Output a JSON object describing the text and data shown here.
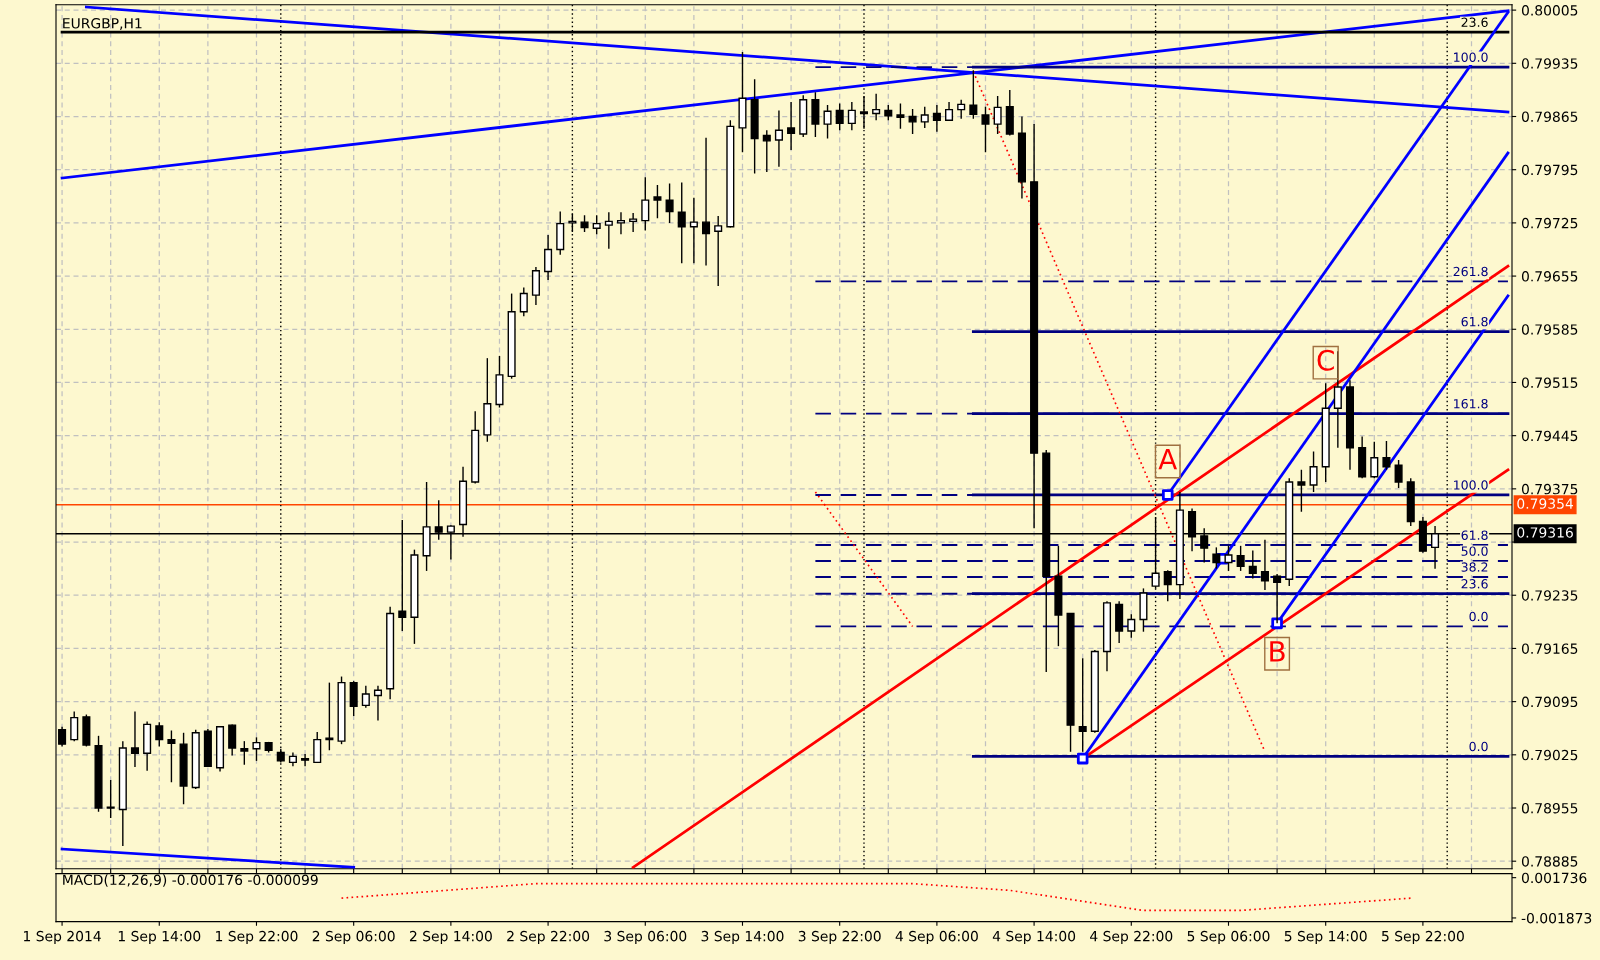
{
  "chart_data": [
    {
      "type": "candlestick",
      "title": "EURGBP,H1",
      "tick_labels": "y",
      "grid": true,
      "x": [
        "2014-09-01T06:00",
        "2014-09-01T07:00",
        "2014-09-01T08:00",
        "2014-09-01T09:00",
        "2014-09-01T10:00",
        "2014-09-01T11:00",
        "2014-09-01T12:00",
        "2014-09-01T13:00",
        "2014-09-01T14:00",
        "2014-09-01T15:00",
        "2014-09-01T16:00",
        "2014-09-01T17:00",
        "2014-09-01T18:00",
        "2014-09-01T19:00",
        "2014-09-01T20:00",
        "2014-09-01T21:00",
        "2014-09-01T22:00",
        "2014-09-01T23:00",
        "2014-09-02T00:00",
        "2014-09-02T01:00",
        "2014-09-02T02:00",
        "2014-09-02T03:00",
        "2014-09-02T04:00",
        "2014-09-02T05:00",
        "2014-09-02T06:00",
        "2014-09-02T07:00",
        "2014-09-02T08:00",
        "2014-09-02T09:00",
        "2014-09-02T10:00",
        "2014-09-02T11:00",
        "2014-09-02T12:00",
        "2014-09-02T13:00",
        "2014-09-02T14:00",
        "2014-09-02T15:00",
        "2014-09-02T16:00",
        "2014-09-02T17:00",
        "2014-09-02T18:00",
        "2014-09-02T19:00",
        "2014-09-02T20:00",
        "2014-09-02T21:00",
        "2014-09-02T22:00",
        "2014-09-02T23:00",
        "2014-09-03T00:00",
        "2014-09-03T01:00",
        "2014-09-03T02:00",
        "2014-09-03T03:00",
        "2014-09-03T04:00",
        "2014-09-03T05:00",
        "2014-09-03T06:00",
        "2014-09-03T07:00",
        "2014-09-03T08:00",
        "2014-09-03T09:00",
        "2014-09-03T10:00",
        "2014-09-03T11:00",
        "2014-09-03T12:00",
        "2014-09-03T13:00",
        "2014-09-03T14:00",
        "2014-09-03T15:00",
        "2014-09-03T16:00",
        "2014-09-03T17:00",
        "2014-09-03T18:00",
        "2014-09-03T19:00",
        "2014-09-03T20:00",
        "2014-09-03T21:00",
        "2014-09-03T22:00",
        "2014-09-03T23:00",
        "2014-09-04T00:00",
        "2014-09-04T01:00",
        "2014-09-04T02:00",
        "2014-09-04T03:00",
        "2014-09-04T04:00",
        "2014-09-04T05:00",
        "2014-09-04T06:00",
        "2014-09-04T07:00",
        "2014-09-04T08:00",
        "2014-09-04T09:00",
        "2014-09-04T10:00",
        "2014-09-04T11:00",
        "2014-09-04T12:00",
        "2014-09-04T13:00",
        "2014-09-04T14:00",
        "2014-09-04T15:00",
        "2014-09-04T16:00",
        "2014-09-04T17:00",
        "2014-09-04T18:00",
        "2014-09-04T19:00",
        "2014-09-04T20:00",
        "2014-09-04T21:00",
        "2014-09-04T22:00",
        "2014-09-04T23:00",
        "2014-09-05T00:00",
        "2014-09-05T01:00",
        "2014-09-05T02:00",
        "2014-09-05T03:00",
        "2014-09-05T04:00",
        "2014-09-05T05:00",
        "2014-09-05T06:00",
        "2014-09-05T07:00",
        "2014-09-05T08:00",
        "2014-09-05T09:00",
        "2014-09-05T10:00",
        "2014-09-05T11:00",
        "2014-09-05T12:00",
        "2014-09-05T13:00",
        "2014-09-05T14:00",
        "2014-09-05T15:00",
        "2014-09-05T16:00",
        "2014-09-05T17:00",
        "2014-09-05T18:00",
        "2014-09-05T19:00",
        "2014-09-05T20:00",
        "2014-09-05T21:00",
        "2014-09-05T22:00",
        "2014-09-05T23:00"
      ],
      "ohlc": [
        [
          0.79058,
          0.79062,
          0.79036,
          0.79039
        ],
        [
          0.79045,
          0.79082,
          0.79043,
          0.79074
        ],
        [
          0.79075,
          0.79078,
          0.79036,
          0.79038
        ],
        [
          0.79037,
          0.7905,
          0.7895,
          0.78955
        ],
        [
          0.78955,
          0.78992,
          0.78942,
          0.78956
        ],
        [
          0.78953,
          0.79043,
          0.78905,
          0.79034
        ],
        [
          0.79034,
          0.79082,
          0.79009,
          0.79027
        ],
        [
          0.79027,
          0.79069,
          0.79004,
          0.79065
        ],
        [
          0.79063,
          0.79068,
          0.79036,
          0.79045
        ],
        [
          0.79045,
          0.79057,
          0.78989,
          0.7904
        ],
        [
          0.79039,
          0.79054,
          0.7896,
          0.78984
        ],
        [
          0.78982,
          0.79058,
          0.7898,
          0.79054
        ],
        [
          0.79056,
          0.79059,
          0.79009,
          0.7901
        ],
        [
          0.79008,
          0.79063,
          0.79003,
          0.79062
        ],
        [
          0.79064,
          0.79065,
          0.79024,
          0.79034
        ],
        [
          0.79033,
          0.79043,
          0.79012,
          0.7903
        ],
        [
          0.79033,
          0.79048,
          0.79017,
          0.79041
        ],
        [
          0.79041,
          0.79042,
          0.79028,
          0.79031
        ],
        [
          0.79028,
          0.79033,
          0.79015,
          0.79017
        ],
        [
          0.79015,
          0.79028,
          0.7901,
          0.79023
        ],
        [
          0.7902,
          0.79026,
          0.7901,
          0.79018
        ],
        [
          0.79015,
          0.79055,
          0.79015,
          0.79045
        ],
        [
          0.79047,
          0.7912,
          0.79031,
          0.79045
        ],
        [
          0.79043,
          0.79128,
          0.79039,
          0.7912
        ],
        [
          0.7912,
          0.79122,
          0.79076,
          0.79089
        ],
        [
          0.7909,
          0.79116,
          0.79087,
          0.79105
        ],
        [
          0.79103,
          0.79116,
          0.7907,
          0.7911
        ],
        [
          0.79112,
          0.7922,
          0.79098,
          0.79211
        ],
        [
          0.79214,
          0.79334,
          0.79188,
          0.79206
        ],
        [
          0.79206,
          0.79295,
          0.79171,
          0.79288
        ],
        [
          0.79287,
          0.79384,
          0.79267,
          0.79325
        ],
        [
          0.79325,
          0.7936,
          0.79308,
          0.79318
        ],
        [
          0.79318,
          0.79327,
          0.79282,
          0.79326
        ],
        [
          0.79328,
          0.79404,
          0.79312,
          0.79385
        ],
        [
          0.79384,
          0.79477,
          0.79382,
          0.79452
        ],
        [
          0.79446,
          0.79547,
          0.79437,
          0.79487
        ],
        [
          0.79486,
          0.7955,
          0.79482,
          0.79525
        ],
        [
          0.79523,
          0.79632,
          0.7952,
          0.79608
        ],
        [
          0.79608,
          0.7964,
          0.79602,
          0.79632
        ],
        [
          0.7963,
          0.79667,
          0.79617,
          0.79662
        ],
        [
          0.79661,
          0.79709,
          0.7965,
          0.7969
        ],
        [
          0.7969,
          0.7974,
          0.79683,
          0.79724
        ],
        [
          0.79725,
          0.79737,
          0.79713,
          0.79727
        ],
        [
          0.79726,
          0.79735,
          0.79713,
          0.79719
        ],
        [
          0.79718,
          0.79735,
          0.7971,
          0.79724
        ],
        [
          0.79722,
          0.79739,
          0.79691,
          0.79727
        ],
        [
          0.79725,
          0.79739,
          0.7971,
          0.79728
        ],
        [
          0.79727,
          0.79738,
          0.79713,
          0.7973
        ],
        [
          0.79728,
          0.79785,
          0.79715,
          0.79755
        ],
        [
          0.79759,
          0.79775,
          0.79731,
          0.79755
        ],
        [
          0.79755,
          0.79777,
          0.79725,
          0.7974
        ],
        [
          0.79739,
          0.79778,
          0.79672,
          0.7972
        ],
        [
          0.7972,
          0.79758,
          0.79672,
          0.79726
        ],
        [
          0.79726,
          0.79837,
          0.79669,
          0.79711
        ],
        [
          0.79714,
          0.79734,
          0.79642,
          0.79721
        ],
        [
          0.7972,
          0.7986,
          0.79719,
          0.79852
        ],
        [
          0.7985,
          0.7995,
          0.79818,
          0.79889
        ],
        [
          0.79887,
          0.79914,
          0.7979,
          0.79836
        ],
        [
          0.7984,
          0.79847,
          0.79792,
          0.79833
        ],
        [
          0.79834,
          0.79873,
          0.79799,
          0.79847
        ],
        [
          0.7985,
          0.79884,
          0.79821,
          0.79843
        ],
        [
          0.79842,
          0.79893,
          0.79838,
          0.79887
        ],
        [
          0.79887,
          0.79897,
          0.79838,
          0.79855
        ],
        [
          0.79855,
          0.7988,
          0.79836,
          0.79872
        ],
        [
          0.79873,
          0.79882,
          0.79847,
          0.79856
        ],
        [
          0.79856,
          0.79884,
          0.79847,
          0.79873
        ],
        [
          0.79871,
          0.79892,
          0.79849,
          0.79869
        ],
        [
          0.79869,
          0.79895,
          0.7986,
          0.79874
        ],
        [
          0.79873,
          0.7988,
          0.7986,
          0.79866
        ],
        [
          0.79867,
          0.79882,
          0.79849,
          0.79864
        ],
        [
          0.79865,
          0.79875,
          0.79842,
          0.79858
        ],
        [
          0.79858,
          0.79878,
          0.7985,
          0.79867
        ],
        [
          0.79869,
          0.7988,
          0.79845,
          0.7986
        ],
        [
          0.7986,
          0.79884,
          0.7986,
          0.79874
        ],
        [
          0.79874,
          0.79887,
          0.79862,
          0.79881
        ],
        [
          0.7988,
          0.79926,
          0.79862,
          0.79868
        ],
        [
          0.79867,
          0.79878,
          0.79818,
          0.79855
        ],
        [
          0.79855,
          0.79892,
          0.79842,
          0.79877
        ],
        [
          0.79878,
          0.799,
          0.7984,
          0.79842
        ],
        [
          0.79843,
          0.79865,
          0.79757,
          0.79779
        ],
        [
          0.79779,
          0.79855,
          0.79323,
          0.79422
        ],
        [
          0.79422,
          0.79426,
          0.79134,
          0.7926
        ],
        [
          0.7926,
          0.793,
          0.79168,
          0.79209
        ],
        [
          0.79211,
          0.79211,
          0.79029,
          0.79064
        ],
        [
          0.79062,
          0.79152,
          0.79029,
          0.79056
        ],
        [
          0.79056,
          0.79163,
          0.79054,
          0.79161
        ],
        [
          0.79161,
          0.79227,
          0.79135,
          0.79225
        ],
        [
          0.79223,
          0.79227,
          0.79172,
          0.79188
        ],
        [
          0.79188,
          0.7921,
          0.79179,
          0.79203
        ],
        [
          0.79203,
          0.79244,
          0.79187,
          0.79238
        ],
        [
          0.79247,
          0.79338,
          0.79244,
          0.79264
        ],
        [
          0.79266,
          0.79268,
          0.79227,
          0.79249
        ],
        [
          0.79249,
          0.79371,
          0.7923,
          0.79347
        ],
        [
          0.79345,
          0.79349,
          0.79293,
          0.79312
        ],
        [
          0.79313,
          0.79323,
          0.79278,
          0.79297
        ],
        [
          0.79289,
          0.79298,
          0.7927,
          0.79278
        ],
        [
          0.79278,
          0.793,
          0.79267,
          0.79288
        ],
        [
          0.79287,
          0.793,
          0.79267,
          0.79273
        ],
        [
          0.79273,
          0.79294,
          0.79257,
          0.79264
        ],
        [
          0.79266,
          0.79308,
          0.79242,
          0.79254
        ],
        [
          0.7926,
          0.79263,
          0.79198,
          0.79252
        ],
        [
          0.79256,
          0.79389,
          0.79247,
          0.79384
        ],
        [
          0.79384,
          0.794,
          0.79345,
          0.7938
        ],
        [
          0.7938,
          0.79424,
          0.79371,
          0.79404
        ],
        [
          0.79404,
          0.79514,
          0.79384,
          0.79481
        ],
        [
          0.79481,
          0.79556,
          0.79429,
          0.79509
        ],
        [
          0.79509,
          0.79518,
          0.794,
          0.79429
        ],
        [
          0.79429,
          0.79444,
          0.79389,
          0.79391
        ],
        [
          0.79391,
          0.79437,
          0.79389,
          0.79416
        ],
        [
          0.79416,
          0.79438,
          0.794,
          0.79404
        ],
        [
          0.79406,
          0.79413,
          0.79376,
          0.79384
        ],
        [
          0.79384,
          0.79389,
          0.79326,
          0.79332
        ],
        [
          0.79332,
          0.79338,
          0.79291,
          0.79293
        ],
        [
          0.79298,
          0.79326,
          0.7927,
          0.79316
        ]
      ],
      "series": [
        {
          "type": "line",
          "color": "#0000ff",
          "x": [
            "2014-09-01T08:00",
            "2014-09-06T05:00"
          ],
          "values": [
            0.80009,
            0.79871
          ]
        },
        {
          "type": "line",
          "color": "#0000ff",
          "x": [
            "2014-09-01T06:00",
            "2014-09-06T05:00"
          ],
          "values": [
            0.79784,
            0.80004
          ]
        },
        {
          "type": "line",
          "color": "#0000ff",
          "x": [
            "2014-09-01T06:00",
            "2014-09-02T06:00"
          ],
          "values": [
            0.78901,
            0.78877
          ]
        },
        {
          "type": "line",
          "color": "#000000",
          "x": [
            "2014-09-01T06:00",
            "2014-09-06T05:00"
          ],
          "values": [
            0.79976,
            0.79976
          ]
        },
        {
          "type": "line",
          "color": "#000080",
          "line_style": "dashed",
          "x": [
            "2014-09-03T20:00",
            "2014-09-06T05:00"
          ],
          "values": [
            0.7993,
            0.7993
          ]
        },
        {
          "type": "line",
          "color": "#000080",
          "line_style": "dashed",
          "x": [
            "2014-09-03T20:00",
            "2014-09-06T05:00"
          ],
          "values": [
            0.79648,
            0.79648
          ]
        },
        {
          "type": "line",
          "color": "#000080",
          "line_style": "dashed",
          "x": [
            "2014-09-03T20:00",
            "2014-09-06T05:00"
          ],
          "values": [
            0.79474,
            0.79474
          ]
        },
        {
          "type": "line",
          "color": "#000080",
          "line_style": "dashed",
          "x": [
            "2014-09-03T20:00",
            "2014-09-06T05:00"
          ],
          "values": [
            0.79367,
            0.79367
          ]
        },
        {
          "type": "line",
          "color": "#000080",
          "line_style": "dashed",
          "x": [
            "2014-09-03T20:00",
            "2014-09-06T05:00"
          ],
          "values": [
            0.79301,
            0.79301
          ]
        },
        {
          "type": "line",
          "color": "#000080",
          "line_style": "dashed",
          "x": [
            "2014-09-03T20:00",
            "2014-09-06T05:00"
          ],
          "values": [
            0.7928,
            0.7928
          ]
        },
        {
          "type": "line",
          "color": "#000080",
          "line_style": "dashed",
          "x": [
            "2014-09-03T20:00",
            "2014-09-06T05:00"
          ],
          "values": [
            0.79259,
            0.79259
          ]
        },
        {
          "type": "line",
          "color": "#000080",
          "line_style": "dashed",
          "x": [
            "2014-09-03T20:00",
            "2014-09-06T05:00"
          ],
          "values": [
            0.79237,
            0.79237
          ]
        },
        {
          "type": "line",
          "color": "#000080",
          "line_style": "dashed",
          "x": [
            "2014-09-03T20:00",
            "2014-09-06T05:00"
          ],
          "values": [
            0.79194,
            0.79194
          ]
        },
        {
          "type": "line",
          "color": "#000080",
          "x": [
            "2014-09-04T09:00",
            "2014-09-06T05:00"
          ],
          "values": [
            0.7993,
            0.7993
          ]
        },
        {
          "type": "line",
          "color": "#000080",
          "x": [
            "2014-09-04T09:00",
            "2014-09-06T05:00"
          ],
          "values": [
            0.79582,
            0.79582
          ]
        },
        {
          "type": "line",
          "color": "#000080",
          "x": [
            "2014-09-04T09:00",
            "2014-09-06T05:00"
          ],
          "values": [
            0.79474,
            0.79474
          ]
        },
        {
          "type": "line",
          "color": "#000080",
          "x": [
            "2014-09-04T09:00",
            "2014-09-06T05:00"
          ],
          "values": [
            0.79367,
            0.79367
          ]
        },
        {
          "type": "line",
          "color": "#000080",
          "x": [
            "2014-09-04T09:00",
            "2014-09-06T05:00"
          ],
          "values": [
            0.79237,
            0.79237
          ]
        },
        {
          "type": "line",
          "color": "#000080",
          "x": [
            "2014-09-04T09:00",
            "2014-09-06T05:00"
          ],
          "values": [
            0.79023,
            0.79023
          ]
        },
        {
          "type": "line",
          "color": "#ff0000",
          "x": [
            "2014-09-03T05:00",
            "2014-09-06T05:00"
          ],
          "values": [
            0.78877,
            0.79668
          ]
        },
        {
          "type": "line",
          "color": "#ff0000",
          "x": [
            "2014-09-04T18:00",
            "2014-09-06T05:00"
          ],
          "values": [
            0.7902,
            0.794
          ]
        },
        {
          "type": "line",
          "color": "#0000ff",
          "x": [
            "2014-09-05T01:00",
            "2014-09-06T05:00"
          ],
          "values": [
            0.79367,
            0.80002
          ]
        },
        {
          "type": "line",
          "color": "#0000ff",
          "x": [
            "2014-09-04T18:00",
            "2014-09-06T05:00"
          ],
          "values": [
            0.7902,
            0.79817
          ]
        },
        {
          "type": "line",
          "color": "#0000ff",
          "x": [
            "2014-09-05T10:00",
            "2014-09-06T05:00"
          ],
          "values": [
            0.79198,
            0.79629
          ]
        },
        {
          "type": "line",
          "color": "#ff0000",
          "line_style": "dotted",
          "x": [
            "2014-09-04T09:00",
            "2014-09-05T09:00"
          ],
          "values": [
            0.79924,
            0.79029
          ]
        },
        {
          "type": "line",
          "color": "#ff0000",
          "line_style": "dotted",
          "x": [
            "2014-09-03T20:00",
            "2014-09-04T04:00"
          ],
          "values": [
            0.79371,
            0.79194
          ]
        },
        {
          "type": "scatter",
          "color": "#0000ff",
          "marker": "square",
          "x": [
            "2014-09-04T18:00",
            "2014-09-05T01:00",
            "2014-09-05T05:30",
            "2014-09-05T10:00"
          ],
          "values": [
            0.7902,
            0.79367,
            0.79283,
            0.79198
          ]
        }
      ],
      "annotations": [
        {
          "text": "23.6",
          "x": "2014-09-06T05:00",
          "y": 0.79976
        },
        {
          "text": "100.0",
          "x": "2014-09-06T05:00",
          "y": 0.7993
        },
        {
          "text": "261.8",
          "x": "2014-09-06T05:00",
          "y": 0.79648
        },
        {
          "text": "61.8",
          "x": "2014-09-06T05:00",
          "y": 0.79582
        },
        {
          "text": "161.8",
          "x": "2014-09-06T05:00",
          "y": 0.79474
        },
        {
          "text": "100.0",
          "x": "2014-09-06T05:00",
          "y": 0.79367
        },
        {
          "text": "61.8",
          "x": "2014-09-06T05:00",
          "y": 0.79301
        },
        {
          "text": "50.0",
          "x": "2014-09-06T05:00",
          "y": 0.7928
        },
        {
          "text": "38.2",
          "x": "2014-09-06T05:00",
          "y": 0.79259
        },
        {
          "text": "23.6",
          "x": "2014-09-06T05:00",
          "y": 0.79237
        },
        {
          "text": "0.0",
          "x": "2014-09-06T05:00",
          "y": 0.79194
        },
        {
          "text": "0.0",
          "x": "2014-09-06T05:00",
          "y": 0.79023
        },
        {
          "text": "A",
          "x": "2014-09-05T01:00",
          "y": 0.79411
        },
        {
          "text": "B",
          "x": "2014-09-05T10:00",
          "y": 0.79158
        },
        {
          "text": "C",
          "x": "2014-09-05T14:00",
          "y": 0.79541
        }
      ],
      "ref_lines": [
        {
          "axis": "y",
          "value": 0.79354,
          "label": "0.79354",
          "color": "#ff4500"
        },
        {
          "axis": "y",
          "value": 0.79316,
          "label": "0.79316",
          "color": "#000000"
        },
        {
          "axis": "x",
          "value": "2014-09-02T00:00",
          "color": "#000000",
          "line_style": "dotted"
        },
        {
          "axis": "x",
          "value": "2014-09-03T00:00",
          "color": "#000000",
          "line_style": "dotted"
        },
        {
          "axis": "x",
          "value": "2014-09-04T00:00",
          "color": "#000000",
          "line_style": "dotted"
        },
        {
          "axis": "x",
          "value": "2014-09-05T00:00",
          "color": "#000000",
          "line_style": "dotted"
        },
        {
          "axis": "x",
          "value": "2014-09-06T00:00",
          "color": "#000000",
          "line_style": "dotted"
        }
      ],
      "xlim": [
        "2014-09-01T05:30",
        "2014-09-06T05:20"
      ],
      "ylim": [
        0.78875,
        0.80012
      ],
      "yticks": [
        0.78885,
        0.78955,
        0.79025,
        0.79095,
        0.79165,
        0.79235,
        {
          "value": 0.79305,
          "label": null
        },
        0.79375,
        0.79445,
        0.79515,
        0.79585,
        0.79655,
        0.79725,
        0.79795,
        0.79865,
        0.79935,
        0.80005
      ],
      "xticks": [
        {
          "value": "2014-09-01T06:00",
          "label": null
        },
        {
          "value": "2014-09-01T10:00",
          "label": null
        },
        {
          "value": "2014-09-01T14:00",
          "label": null
        },
        {
          "value": "2014-09-01T18:00",
          "label": null
        },
        {
          "value": "2014-09-01T22:00",
          "label": null
        },
        {
          "value": "2014-09-02T02:00",
          "label": null
        },
        {
          "value": "2014-09-02T06:00",
          "label": null
        },
        {
          "value": "2014-09-02T10:00",
          "label": null
        },
        {
          "value": "2014-09-02T14:00",
          "label": null
        },
        {
          "value": "2014-09-02T18:00",
          "label": null
        },
        {
          "value": "2014-09-02T22:00",
          "label": null
        },
        {
          "value": "2014-09-03T02:00",
          "label": null
        },
        {
          "value": "2014-09-03T06:00",
          "label": null
        },
        {
          "value": "2014-09-03T10:00",
          "label": null
        },
        {
          "value": "2014-09-03T14:00",
          "label": null
        },
        {
          "value": "2014-09-03T18:00",
          "label": null
        },
        {
          "value": "2014-09-03T22:00",
          "label": null
        },
        {
          "value": "2014-09-04T02:00",
          "label": null
        },
        {
          "value": "2014-09-04T06:00",
          "label": null
        },
        {
          "value": "2014-09-04T10:00",
          "label": null
        },
        {
          "value": "2014-09-04T14:00",
          "label": null
        },
        {
          "value": "2014-09-04T18:00",
          "label": null
        },
        {
          "value": "2014-09-04T22:00",
          "label": null
        },
        {
          "value": "2014-09-05T02:00",
          "label": null
        },
        {
          "value": "2014-09-05T06:00",
          "label": null
        },
        {
          "value": "2014-09-05T10:00",
          "label": null
        },
        {
          "value": "2014-09-05T14:00",
          "label": null
        },
        {
          "value": "2014-09-05T18:00",
          "label": null
        },
        {
          "value": "2014-09-05T22:00",
          "label": null
        },
        {
          "value": "2014-09-06T02:00",
          "label": null
        }
      ]
    },
    {
      "type": "line",
      "title": "MACD(12,26,9) -0.000176 -0.000099",
      "x": [
        "2014-09-02T05:00",
        "2014-09-02T21:00",
        "2014-09-04T04:00",
        "2014-09-04T12:00",
        "2014-09-04T23:00",
        "2014-09-05T07:00",
        "2014-09-05T21:00"
      ],
      "series": [
        {
          "color": "#ff0000",
          "line_style": "dotted",
          "values": [
            -0.0001,
            0.0012,
            0.0012,
            0.0006,
            -0.0012,
            -0.0012,
            -0.0001
          ]
        }
      ],
      "xlim": [
        "2014-09-01T05:30",
        "2014-09-06T05:20"
      ],
      "ylim": [
        -0.0022,
        0.0021
      ],
      "yticks": [
        -0.001873,
        0.001736
      ],
      "xticks": [
        {
          "value": "2014-09-01T06:00",
          "label": "1 Sep 2014"
        },
        {
          "value": "2014-09-01T14:00",
          "label": "1 Sep 14:00"
        },
        {
          "value": "2014-09-01T22:00",
          "label": "1 Sep 22:00"
        },
        {
          "value": "2014-09-02T06:00",
          "label": "2 Sep 06:00"
        },
        {
          "value": "2014-09-02T14:00",
          "label": "2 Sep 14:00"
        },
        {
          "value": "2014-09-02T22:00",
          "label": "2 Sep 22:00"
        },
        {
          "value": "2014-09-03T06:00",
          "label": "3 Sep 06:00"
        },
        {
          "value": "2014-09-03T14:00",
          "label": "3 Sep 14:00"
        },
        {
          "value": "2014-09-03T22:00",
          "label": "3 Sep 22:00"
        },
        {
          "value": "2014-09-04T06:00",
          "label": "4 Sep 06:00"
        },
        {
          "value": "2014-09-04T14:00",
          "label": "4 Sep 14:00"
        },
        {
          "value": "2014-09-04T22:00",
          "label": "4 Sep 22:00"
        },
        {
          "value": "2014-09-05T06:00",
          "label": "5 Sep 06:00"
        },
        {
          "value": "2014-09-05T14:00",
          "label": "5 Sep 14:00"
        },
        {
          "value": "2014-09-05T22:00",
          "label": "5 Sep 22:00"
        }
      ]
    }
  ]
}
